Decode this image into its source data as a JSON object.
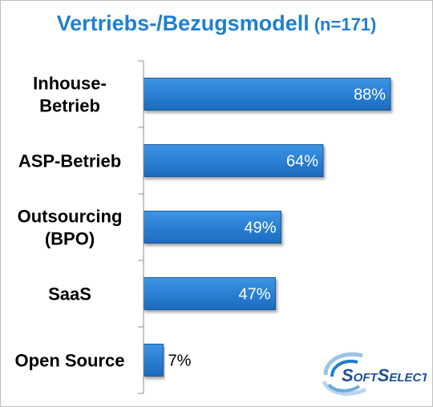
{
  "chart_data": {
    "type": "bar",
    "orientation": "horizontal",
    "title": "Vertriebs-/Bezugsmodell",
    "subtitle": "(n=171)",
    "categories": [
      [
        "Inhouse-",
        "Betrieb"
      ],
      [
        "ASP-Betrieb"
      ],
      [
        "Outsourcing",
        "(BPO)"
      ],
      [
        "SaaS"
      ],
      [
        "Open Source"
      ]
    ],
    "values": [
      88,
      64,
      49,
      47,
      7
    ],
    "value_labels": [
      "88%",
      "64%",
      "49%",
      "47%",
      "7%"
    ],
    "unit": "%",
    "xlim": [
      0,
      100
    ],
    "grid": false,
    "legend": "none",
    "bar_color": "#2a7fd4",
    "bar_edge_color": "#1a5a9c",
    "title_color": "#1f7fd1"
  },
  "logo": {
    "text": "SoftSelect"
  }
}
